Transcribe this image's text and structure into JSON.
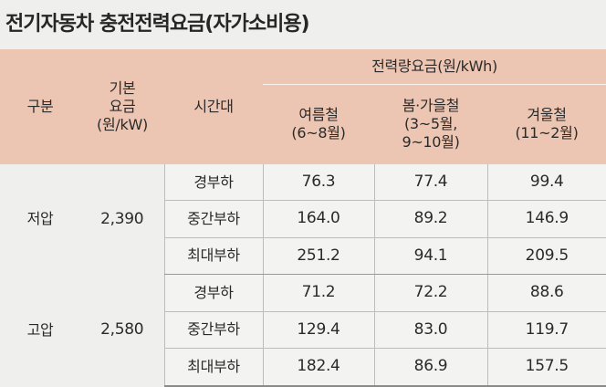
{
  "title": "전기자동차 충전전력요금(자가소비용)",
  "header": {
    "category": "구분",
    "base_fee": [
      "기본",
      "요금",
      "(원/kW)"
    ],
    "time_slot": "시간대",
    "energy_rate": "전력량요금(원/kWh)",
    "summer": [
      "여름철",
      "(6~8월)"
    ],
    "spring_fall": [
      "봄·가을철",
      "(3~5월,",
      "9~10월)"
    ],
    "winter": [
      "겨울철",
      "(11~2월)"
    ]
  },
  "groups": [
    {
      "name": "저압",
      "base_fee": "2,390",
      "rows": [
        {
          "slot": "경부하",
          "summer": "76.3",
          "spring_fall": "77.4",
          "winter": "99.4"
        },
        {
          "slot": "중간부하",
          "summer": "164.0",
          "spring_fall": "89.2",
          "winter": "146.9"
        },
        {
          "slot": "최대부하",
          "summer": "251.2",
          "spring_fall": "94.1",
          "winter": "209.5"
        }
      ]
    },
    {
      "name": "고압",
      "base_fee": "2,580",
      "rows": [
        {
          "slot": "경부하",
          "summer": "71.2",
          "spring_fall": "72.2",
          "winter": "88.6"
        },
        {
          "slot": "중간부하",
          "summer": "129.4",
          "spring_fall": "83.0",
          "winter": "119.7"
        },
        {
          "slot": "최대부하",
          "summer": "182.4",
          "spring_fall": "86.9",
          "winter": "157.5"
        }
      ]
    }
  ]
}
